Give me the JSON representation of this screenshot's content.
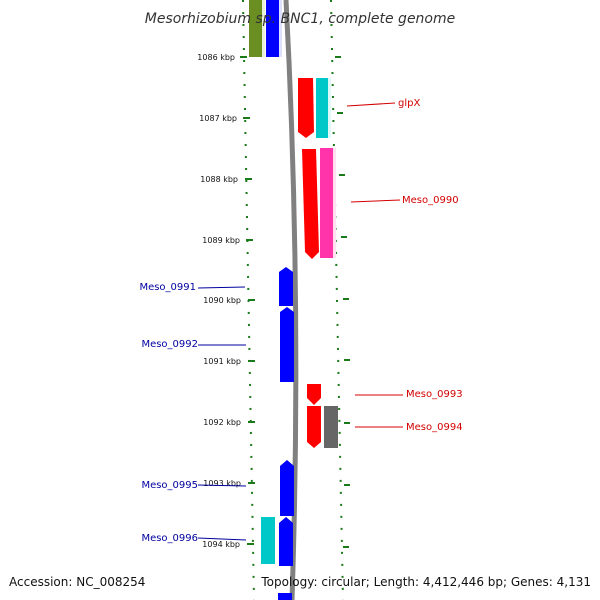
{
  "title": "Mesorhizobium sp. BNC1, complete genome",
  "accession_label": "Accession: NC_008254",
  "topology_label": "Topology: circular; Length: 4,412,446 bp; Genes: 4,131",
  "colors": {
    "forward": "#ff0000",
    "reverse": "#0000ff",
    "cyan": "#00c8c8",
    "magenta": "#ff33aa",
    "grey": "#666666",
    "olive": "#6b8e23",
    "backbone": "#808080",
    "ticks": "#1a7a1a"
  },
  "ticks": [
    {
      "label": "1086 kbp"
    },
    {
      "label": "1087 kbp"
    },
    {
      "label": "1088 kbp"
    },
    {
      "label": "1089 kbp"
    },
    {
      "label": "1090 kbp"
    },
    {
      "label": "1091 kbp"
    },
    {
      "label": "1092 kbp"
    },
    {
      "label": "1093 kbp"
    },
    {
      "label": "1094 kbp"
    }
  ],
  "gene_labels": [
    {
      "name": "glpX",
      "strand": "forward"
    },
    {
      "name": "Meso_0990",
      "strand": "forward"
    },
    {
      "name": "Meso_0991",
      "strand": "reverse"
    },
    {
      "name": "Meso_0992",
      "strand": "reverse"
    },
    {
      "name": "Meso_0993",
      "strand": "forward"
    },
    {
      "name": "Meso_0994",
      "strand": "forward"
    },
    {
      "name": "Meso_0995",
      "strand": "reverse"
    },
    {
      "name": "Meso_0996",
      "strand": "reverse"
    }
  ]
}
